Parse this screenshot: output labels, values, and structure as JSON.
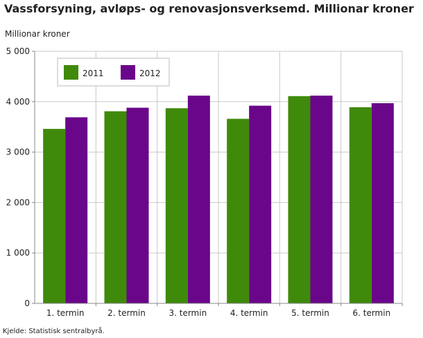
{
  "title": "Vassforsyning, avløps- og renovasjonsverksemd. Millionar kroner",
  "source": "Kjelde: Statistisk sentralbyrå.",
  "colors": {
    "2011": "#3f8a0a",
    "2012": "#6a068a",
    "grid": "#c8c8c8",
    "axis": "#888888"
  },
  "chart_data": {
    "type": "bar",
    "title": "Vassforsyning, avløps- og renovasjonsverksemd. Millionar kroner",
    "ylabel": "Millionar kroner",
    "xlabel": "",
    "categories": [
      "1. termin",
      "2. termin",
      "3. termin",
      "4. termin",
      "5. termin",
      "6. termin"
    ],
    "series": [
      {
        "name": "2011",
        "values": [
          3460,
          3810,
          3870,
          3660,
          4110,
          3890
        ]
      },
      {
        "name": "2012",
        "values": [
          3690,
          3880,
          4120,
          3920,
          4120,
          3970
        ]
      }
    ],
    "ylim": [
      0,
      5000
    ],
    "yticks": [
      0,
      1000,
      2000,
      3000,
      4000,
      5000
    ],
    "ytick_labels": [
      "0",
      "1 000",
      "2 000",
      "3 000",
      "4 000",
      "5 000"
    ],
    "grid": true,
    "legend_position": "top-left"
  }
}
